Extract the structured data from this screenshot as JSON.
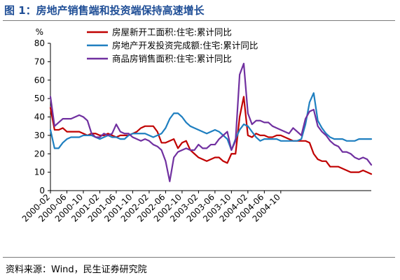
{
  "header": {
    "title": "图 1：房地产销售端和投资端保持高速增长"
  },
  "footer": {
    "source": "资料来源：Wind，民生证券研究院"
  },
  "chart_data": {
    "type": "line",
    "ylabel": "%",
    "ylim": [
      0,
      80
    ],
    "yticks": [
      0,
      10,
      20,
      30,
      40,
      50,
      60,
      70,
      80
    ],
    "grid": false,
    "legend_position": "top",
    "x_tick_labels": [
      "2000-02",
      "2000-06",
      "2000-10",
      "2001-02",
      "2001-06",
      "2001-10",
      "2002-02",
      "2002-06",
      "2002-10",
      "2003-02",
      "2003-06",
      "2003-10",
      "2004-02",
      "2004-06",
      "2004-10"
    ],
    "x_start": "2000-02",
    "series": [
      {
        "name": "房屋新开工面积:住宅:累计同比",
        "color": "#c00000",
        "values": [
          45,
          33,
          33,
          34,
          32,
          32,
          32,
          32,
          31,
          30,
          31,
          31,
          30,
          30,
          31,
          30,
          29,
          30,
          30,
          30,
          31,
          32,
          34,
          35,
          35,
          35,
          32,
          26,
          26,
          27,
          28,
          23,
          26,
          27,
          22,
          20,
          18,
          17,
          16,
          17,
          18,
          18,
          16,
          15,
          20,
          20,
          40,
          51,
          30,
          29,
          31,
          30,
          30,
          29,
          29,
          30,
          30,
          29,
          28,
          27,
          27,
          27,
          27,
          26,
          20,
          17,
          16,
          16,
          13,
          13,
          13,
          12,
          11,
          10,
          10,
          10,
          11,
          10,
          9
        ]
      },
      {
        "name": "房地产开发投资完成额:住宅:累计同比",
        "color": "#1f7fc0",
        "values": [
          33,
          23,
          23,
          26,
          28,
          29,
          29,
          29,
          30,
          30,
          30,
          29,
          28,
          29,
          30,
          29,
          29,
          28,
          28,
          30,
          31,
          31,
          31,
          31,
          30,
          29,
          30,
          31,
          34,
          39,
          42,
          42,
          40,
          37,
          35,
          34,
          33,
          32,
          31,
          32,
          33,
          32,
          30,
          28,
          22,
          28,
          33,
          36,
          35,
          32,
          29,
          27,
          28,
          28,
          28,
          28,
          27,
          27,
          27,
          27,
          27,
          28,
          36,
          48,
          53,
          38,
          34,
          31,
          29,
          28,
          28,
          28,
          27,
          27,
          27,
          28,
          28,
          28,
          28
        ]
      },
      {
        "name": "商品房销售面积:住宅:累计同比",
        "color": "#7030a0",
        "values": [
          51,
          35,
          37,
          39,
          39,
          39,
          40,
          41,
          40,
          38,
          31,
          29,
          29,
          31,
          30,
          31,
          36,
          32,
          31,
          31,
          29,
          28,
          27,
          28,
          27,
          25,
          24,
          22,
          16,
          5,
          18,
          21,
          22,
          23,
          22,
          22,
          25,
          23,
          23,
          25,
          25,
          28,
          30,
          32,
          22,
          27,
          63,
          69,
          42,
          36,
          38,
          38,
          37,
          37,
          35,
          34,
          33,
          32,
          31,
          34,
          32,
          30,
          39,
          43,
          44,
          35,
          32,
          30,
          27,
          25,
          24,
          21,
          21,
          20,
          18,
          17,
          18,
          17,
          14
        ]
      }
    ]
  }
}
